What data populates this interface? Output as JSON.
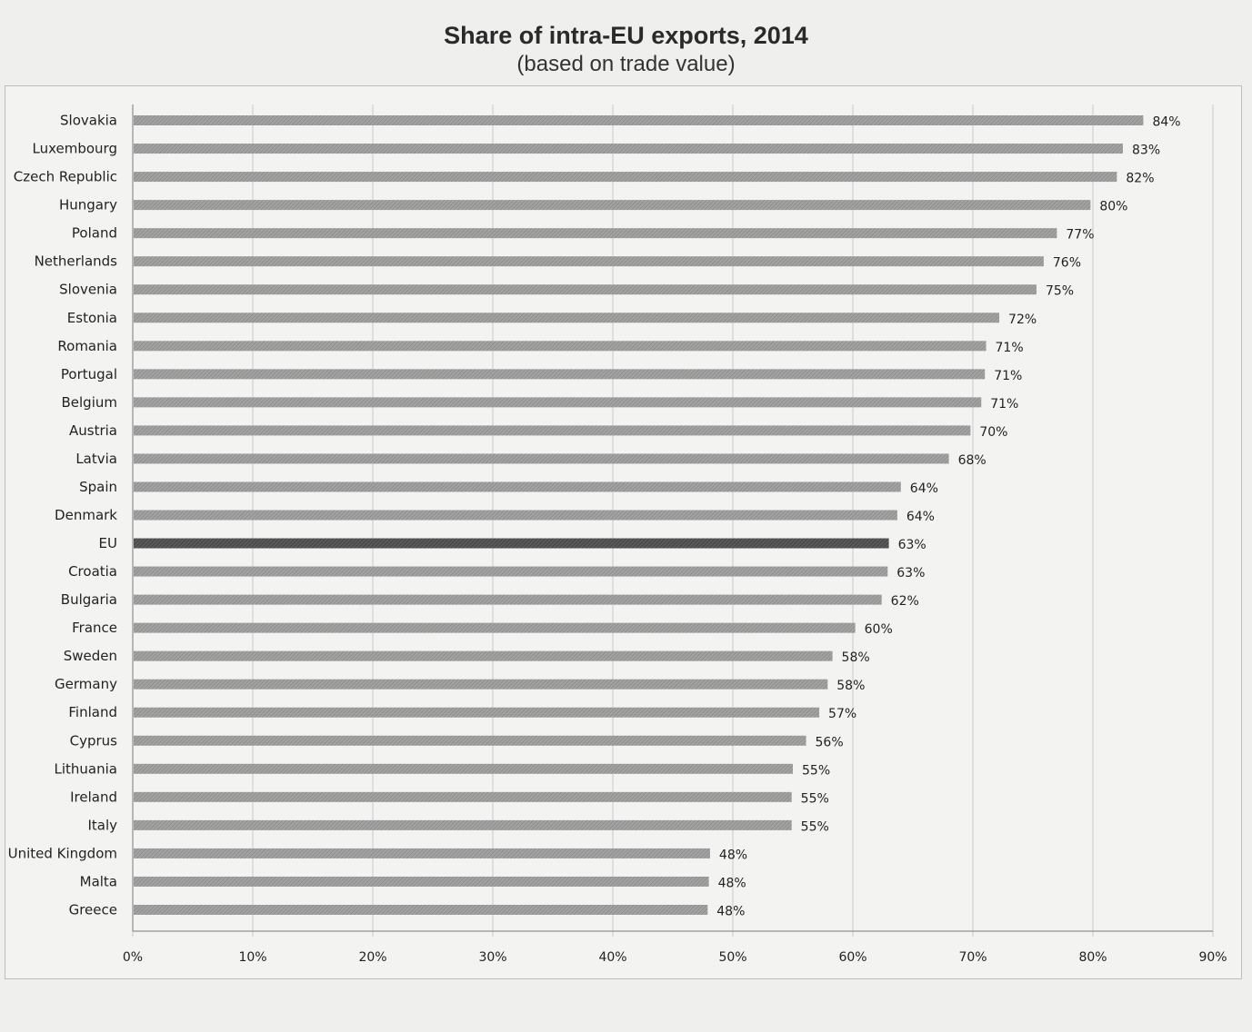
{
  "chart_data": {
    "type": "bar",
    "orientation": "horizontal",
    "title": "Share of intra-EU exports, 2014",
    "subtitle": "(based on trade value)",
    "categories": [
      "Slovakia",
      "Luxembourg",
      "Czech Republic",
      "Hungary",
      "Poland",
      "Netherlands",
      "Slovenia",
      "Estonia",
      "Romania",
      "Portugal",
      "Belgium",
      "Austria",
      "Latvia",
      "Spain",
      "Denmark",
      "EU",
      "Croatia",
      "Bulgaria",
      "France",
      "Sweden",
      "Germany",
      "Finland",
      "Cyprus",
      "Lithuania",
      "Ireland",
      "Italy",
      "United Kingdom",
      "Malta",
      "Greece"
    ],
    "values": [
      84.2,
      82.5,
      82.0,
      79.8,
      77.0,
      75.9,
      75.3,
      72.2,
      71.1,
      71.0,
      70.7,
      69.8,
      68.0,
      64.0,
      63.7,
      63.0,
      62.9,
      62.4,
      60.2,
      58.3,
      57.9,
      57.2,
      56.1,
      55.0,
      54.9,
      54.9,
      48.1,
      48.0,
      47.9
    ],
    "value_labels": [
      "84%",
      "83%",
      "82%",
      "80%",
      "77%",
      "76%",
      "75%",
      "72%",
      "71%",
      "71%",
      "71%",
      "70%",
      "68%",
      "64%",
      "64%",
      "63%",
      "63%",
      "62%",
      "60%",
      "58%",
      "58%",
      "57%",
      "56%",
      "55%",
      "55%",
      "55%",
      "48%",
      "48%",
      "48%"
    ],
    "highlight_category": "EU",
    "xlim": [
      0,
      90
    ],
    "x_ticks": [
      "0%",
      "10%",
      "20%",
      "30%",
      "40%",
      "50%",
      "60%",
      "70%",
      "80%",
      "90%"
    ],
    "grid": "vertical",
    "legend": "none",
    "colors": {
      "bar": "#9a9a9a",
      "highlight": "#505050",
      "grid": "#c8c8c8",
      "axis": "#7a7a7a"
    }
  }
}
